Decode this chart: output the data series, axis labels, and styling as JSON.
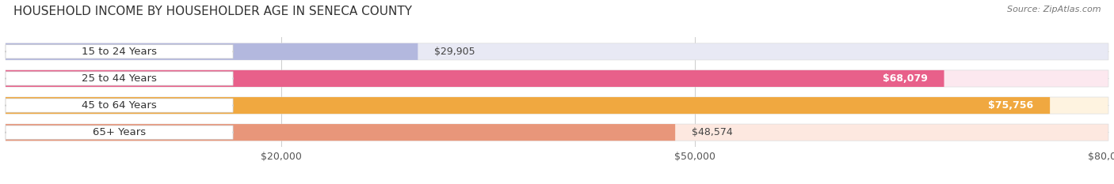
{
  "title": "HOUSEHOLD INCOME BY HOUSEHOLDER AGE IN SENECA COUNTY",
  "source": "Source: ZipAtlas.com",
  "categories": [
    "15 to 24 Years",
    "25 to 44 Years",
    "45 to 64 Years",
    "65+ Years"
  ],
  "values": [
    29905,
    68079,
    75756,
    48574
  ],
  "bar_colors": [
    "#b3b8de",
    "#e8608a",
    "#f0a840",
    "#e8967a"
  ],
  "bar_bg_colors": [
    "#e8e9f4",
    "#fce8ef",
    "#fef3e0",
    "#fde8e0"
  ],
  "label_colors": [
    "#333333",
    "#333333",
    "#333333",
    "#333333"
  ],
  "value_inside_colors": [
    "#333333",
    "#ffffff",
    "#ffffff",
    "#333333"
  ],
  "xlim": [
    0,
    80000
  ],
  "xticks": [
    20000,
    50000,
    80000
  ],
  "xtick_labels": [
    "$20,000",
    "$50,000",
    "$80,000"
  ],
  "value_labels": [
    "$29,905",
    "$68,079",
    "$75,756",
    "$48,574"
  ],
  "value_inside_threshold": 55000,
  "title_fontsize": 11,
  "tick_fontsize": 9,
  "bar_label_fontsize": 9,
  "category_fontsize": 9.5,
  "background_color": "#ffffff"
}
